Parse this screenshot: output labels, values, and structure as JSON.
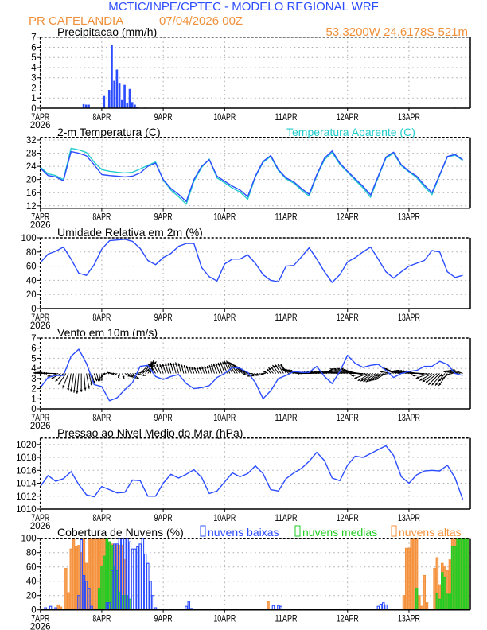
{
  "header": {
    "title": "MCTIC/INPE/CPTEC - MODELO REGIONAL WRF",
    "station": "PR CAFELANDIA",
    "run": "07/04/2026 00Z",
    "location": "53.3200W 24.6178S 521m"
  },
  "colors": {
    "title": "#2b4cff",
    "info": "#f0903a",
    "line": "#2b4cff",
    "apparent": "#22cccc",
    "low": "#2b4cff",
    "mid": "#22cc22",
    "high": "#f5903a"
  },
  "x_axis": {
    "labels": [
      "7APR",
      "8APR",
      "9APR",
      "10APR",
      "11APR",
      "12APR",
      "13APR"
    ],
    "year": "2026",
    "range": [
      "07/00Z",
      "13/23Z"
    ]
  },
  "times": [
    "07/00Z",
    "07/03Z",
    "07/06Z",
    "07/09Z",
    "07/12Z",
    "07/15Z",
    "07/18Z",
    "07/21Z",
    "08/00Z",
    "08/03Z",
    "08/06Z",
    "08/09Z",
    "08/12Z",
    "08/15Z",
    "08/18Z",
    "08/21Z",
    "09/00Z",
    "09/03Z",
    "09/06Z",
    "09/09Z",
    "09/12Z",
    "09/15Z",
    "09/18Z",
    "09/21Z",
    "10/00Z",
    "10/03Z",
    "10/06Z",
    "10/09Z",
    "10/12Z",
    "10/15Z",
    "10/18Z",
    "10/21Z",
    "11/00Z",
    "11/03Z",
    "11/06Z",
    "11/09Z",
    "11/12Z",
    "11/15Z",
    "11/18Z",
    "11/21Z",
    "12/00Z",
    "12/03Z",
    "12/06Z",
    "12/09Z",
    "12/12Z",
    "12/15Z",
    "12/18Z",
    "12/21Z",
    "13/00Z",
    "13/03Z",
    "13/06Z",
    "13/09Z",
    "13/12Z",
    "13/15Z",
    "13/18Z",
    "13/21Z"
  ],
  "chart_data": [
    {
      "type": "bar",
      "title": "Precipitacao (mm/h)",
      "ylim": [
        0,
        7
      ],
      "yticks": [
        0,
        1,
        2,
        3,
        4,
        5,
        6,
        7
      ],
      "grid": true,
      "bars": [
        [
          "07/17Z",
          0.4
        ],
        [
          "07/18Z",
          0.35
        ],
        [
          "07/19Z",
          0.35
        ],
        [
          "08/01Z",
          1.2
        ],
        [
          "08/03Z",
          1.8
        ],
        [
          "08/04Z",
          6.2
        ],
        [
          "08/05Z",
          2.7
        ],
        [
          "08/06Z",
          3.8
        ],
        [
          "08/07Z",
          2.5
        ],
        [
          "08/08Z",
          0.8
        ],
        [
          "08/09Z",
          2.3
        ],
        [
          "08/10Z",
          0.5
        ],
        [
          "08/11Z",
          1.9
        ],
        [
          "08/12Z",
          0.6
        ],
        [
          "08/13Z",
          0.35
        ],
        [
          "08/14Z",
          0.1
        ],
        [
          "08/17Z",
          0.05
        ],
        [
          "13/18Z",
          0.05
        ]
      ]
    },
    {
      "type": "line",
      "title": "2-m Temperatura (C)",
      "legend": "Temperatura Aparente (C)",
      "ylim": [
        11.3,
        32.8
      ],
      "yticks": [
        12,
        16,
        20,
        24,
        28,
        32
      ],
      "grid": true,
      "series": [
        {
          "key": "temperature",
          "values": [
            23.5,
            21.2,
            20.8,
            19.6,
            28.5,
            28.0,
            27.2,
            24.5,
            21.5,
            21.2,
            21.0,
            20.8,
            21.0,
            22.0,
            24.0,
            25.0,
            20.0,
            17.3,
            15.5,
            13.3,
            20.0,
            24.0,
            26.0,
            21.0,
            19.5,
            18.0,
            16.8,
            14.8,
            21.0,
            25.5,
            27.3,
            23.0,
            20.5,
            19.3,
            17.3,
            15.5,
            21.5,
            26.5,
            28.7,
            25.0,
            22.5,
            20.2,
            18.0,
            15.3,
            21.0,
            26.8,
            28.3,
            24.5,
            22.5,
            21.0,
            18.3,
            16.0,
            21.5,
            27.0,
            27.6,
            26.0
          ]
        },
        {
          "key": "apparent",
          "name": "Temperatura Aparente (C)",
          "values": [
            23.8,
            21.7,
            21.2,
            20.0,
            29.5,
            29.0,
            28.2,
            25.3,
            23.0,
            22.5,
            22.2,
            22.0,
            22.2,
            23.2,
            24.3,
            25.3,
            19.8,
            16.8,
            14.8,
            12.5,
            19.5,
            23.7,
            26.2,
            20.5,
            19.0,
            17.4,
            16.2,
            14.0,
            20.8,
            25.2,
            27.0,
            22.7,
            20.2,
            18.9,
            16.8,
            15.0,
            21.2,
            26.0,
            28.2,
            24.6,
            22.3,
            19.8,
            17.5,
            14.6,
            20.7,
            26.5,
            28.0,
            24.2,
            22.3,
            20.6,
            17.8,
            15.4,
            21.3,
            26.8,
            27.4,
            25.8
          ]
        }
      ]
    },
    {
      "type": "line",
      "title": "Umidade Relativa em 2m (%)",
      "ylim": [
        0,
        100
      ],
      "yticks": [
        0,
        20,
        40,
        60,
        80,
        100
      ],
      "grid": true,
      "series": [
        {
          "key": "rh",
          "values": [
            65,
            77,
            81,
            87,
            70,
            50,
            47,
            62,
            84,
            96,
            97,
            98,
            95,
            85,
            68,
            62,
            72,
            78,
            88,
            92,
            92,
            58,
            45,
            39,
            63,
            70,
            70,
            76,
            64,
            48,
            40,
            38,
            60,
            61,
            73,
            86,
            70,
            52,
            37,
            48,
            66,
            72,
            80,
            87,
            70,
            52,
            43,
            52,
            60,
            64,
            68,
            82,
            80,
            52,
            44,
            47
          ]
        }
      ]
    },
    {
      "type": "line",
      "title": "Vento em 10m (m/s)",
      "ylim": [
        0,
        7
      ],
      "yticks": [
        0,
        1,
        2,
        3,
        4,
        5,
        6,
        7
      ],
      "grid": true,
      "series": [
        {
          "key": "speed",
          "values": [
            2.1,
            3.1,
            3.3,
            3.3,
            5.2,
            5.9,
            4.5,
            2.4,
            2.2,
            0.8,
            1.1,
            1.9,
            2.6,
            4.2,
            4.3,
            3.2,
            2.9,
            3.2,
            3.4,
            2.5,
            2.0,
            2.1,
            2.3,
            3.1,
            3.5,
            4.1,
            4.0,
            3.6,
            2.6,
            1.0,
            1.8,
            3.0,
            3.3,
            3.7,
            3.6,
            3.6,
            4.2,
            3.2,
            2.5,
            3.7,
            5.3,
            4.5,
            4.1,
            4.3,
            4.4,
            3.8,
            3.1,
            3.5,
            3.7,
            3.8,
            4.2,
            4.2,
            4.7,
            4.4,
            3.5,
            3.3
          ]
        }
      ],
      "vectors": {
        "baseline": 3.5,
        "direction_to_deg": [
          275,
          275,
          270,
          225,
          190,
          185,
          170,
          160,
          180,
          300,
          240,
          120,
          130,
          45,
          35,
          330,
          340,
          345,
          345,
          345,
          340,
          340,
          345,
          340,
          340,
          335,
          320,
          300,
          250,
          240,
          320,
          325,
          330,
          290,
          285,
          270,
          275,
          280,
          285,
          275,
          285,
          290,
          270,
          240,
          235,
          240,
          300,
          280,
          285,
          280,
          270,
          240,
          225,
          215,
          280,
          290
        ]
      }
    },
    {
      "type": "line",
      "title": "Pressao ao Nivel Medio do Mar (hPa)",
      "ylim": [
        1010,
        1021
      ],
      "yticks": [
        1010,
        1012,
        1014,
        1016,
        1018,
        1020
      ],
      "grid": true,
      "series": [
        {
          "key": "mslp",
          "values": [
            1013.5,
            1015.2,
            1014.3,
            1014.7,
            1015.8,
            1013.8,
            1012.2,
            1011.9,
            1013.5,
            1013.0,
            1012.5,
            1012.6,
            1014.5,
            1014.4,
            1012.0,
            1012.0,
            1014.0,
            1015.4,
            1014.8,
            1015.4,
            1016.1,
            1014.9,
            1012.4,
            1012.8,
            1014.2,
            1015.6,
            1015.0,
            1015.5,
            1016.7,
            1015.5,
            1013.0,
            1012.8,
            1014.7,
            1015.6,
            1016.3,
            1017.4,
            1018.8,
            1017.5,
            1014.8,
            1014.4,
            1016.8,
            1018.2,
            1018.0,
            1018.6,
            1019.2,
            1019.8,
            1018.3,
            1015.0,
            1014.0,
            1015.3,
            1015.9,
            1016.0,
            1015.9,
            1016.8,
            1014.8,
            1011.5
          ]
        }
      ]
    },
    {
      "type": "bar",
      "title": "Cobertura de Nuvens (%)",
      "ylim": [
        0,
        100
      ],
      "yticks": [
        0,
        20,
        40,
        60,
        80,
        100
      ],
      "grid": true,
      "legend": {
        "low": "nuvens baixas",
        "mid": "nuvens medias",
        "high": "nuvens altas"
      },
      "series": [
        {
          "key": "high",
          "name": "nuvens altas",
          "bars": [
            [
              "07/07Z",
              7
            ],
            [
              "07/08Z",
              4
            ],
            [
              "07/10Z",
              58
            ],
            [
              "07/11Z",
              24
            ],
            [
              "07/12Z",
              85
            ],
            [
              "07/13Z",
              100
            ],
            [
              "07/14Z",
              88
            ],
            [
              "07/15Z",
              90
            ],
            [
              "07/16Z",
              80
            ],
            [
              "07/17Z",
              100
            ],
            [
              "07/18Z",
              65
            ],
            [
              "07/19Z",
              100
            ],
            [
              "07/20Z",
              100
            ],
            [
              "07/21Z",
              100
            ],
            [
              "07/22Z",
              100
            ],
            [
              "07/23Z",
              100
            ],
            [
              "08/00Z",
              100
            ],
            [
              "08/01Z",
              100
            ],
            [
              "08/02Z",
              100
            ],
            [
              "08/03Z",
              95
            ],
            [
              "08/04Z",
              92
            ],
            [
              "08/05Z",
              90
            ],
            [
              "08/06Z",
              90
            ],
            [
              "08/07Z",
              90
            ],
            [
              "08/08Z",
              90
            ],
            [
              "08/09Z",
              70
            ],
            [
              "08/10Z",
              20
            ],
            [
              "10/17Z",
              12
            ],
            [
              "12/22Z",
              20
            ],
            [
              "12/23Z",
              86
            ],
            [
              "13/00Z",
              86
            ],
            [
              "13/01Z",
              100
            ],
            [
              "13/02Z",
              100
            ],
            [
              "13/03Z",
              100
            ],
            [
              "13/04Z",
              20
            ],
            [
              "13/05Z",
              5
            ],
            [
              "13/06Z",
              48
            ],
            [
              "13/07Z",
              10
            ],
            [
              "13/10Z",
              58
            ],
            [
              "13/11Z",
              73
            ],
            [
              "13/12Z",
              35
            ],
            [
              "13/13Z",
              65
            ],
            [
              "13/14Z",
              60
            ],
            [
              "13/15Z",
              55
            ],
            [
              "13/16Z",
              70
            ],
            [
              "13/17Z",
              100
            ],
            [
              "13/18Z",
              100
            ],
            [
              "13/19Z",
              100
            ],
            [
              "13/20Z",
              100
            ],
            [
              "13/21Z",
              100
            ],
            [
              "13/22Z",
              100
            ],
            [
              "13/23Z",
              100
            ]
          ]
        },
        {
          "key": "mid",
          "name": "nuvens medias",
          "bars": [
            [
              "07/23Z",
              30
            ],
            [
              "08/00Z",
              60
            ],
            [
              "08/01Z",
              75
            ],
            [
              "08/02Z",
              100
            ],
            [
              "08/03Z",
              95
            ],
            [
              "08/04Z",
              90
            ],
            [
              "08/05Z",
              60
            ],
            [
              "08/06Z",
              55
            ],
            [
              "08/07Z",
              25
            ],
            [
              "08/08Z",
              20
            ],
            [
              "08/09Z",
              20
            ],
            [
              "08/10Z",
              20
            ],
            [
              "08/11Z",
              15
            ],
            [
              "13/03Z",
              30
            ],
            [
              "13/11Z",
              23
            ],
            [
              "13/12Z",
              15
            ],
            [
              "13/13Z",
              52
            ],
            [
              "13/14Z",
              45
            ],
            [
              "13/15Z",
              22
            ],
            [
              "13/16Z",
              22
            ],
            [
              "13/17Z",
              88
            ],
            [
              "13/18Z",
              88
            ],
            [
              "13/19Z",
              100
            ],
            [
              "13/20Z",
              100
            ],
            [
              "13/21Z",
              100
            ],
            [
              "13/22Z",
              100
            ],
            [
              "13/23Z",
              100
            ]
          ]
        },
        {
          "key": "low",
          "name": "nuvens baixas",
          "bars": [
            [
              "07/02Z",
              3
            ],
            [
              "07/04Z",
              5
            ],
            [
              "07/06Z",
              3
            ],
            [
              "07/15Z",
              20
            ],
            [
              "07/16Z",
              98
            ],
            [
              "07/17Z",
              48
            ],
            [
              "07/18Z",
              40
            ],
            [
              "07/19Z",
              30
            ],
            [
              "07/20Z",
              5
            ],
            [
              "08/02Z",
              10
            ],
            [
              "08/03Z",
              10
            ],
            [
              "08/04Z",
              55
            ],
            [
              "08/05Z",
              92
            ],
            [
              "08/06Z",
              92
            ],
            [
              "08/07Z",
              100
            ],
            [
              "08/08Z",
              100
            ],
            [
              "08/09Z",
              100
            ],
            [
              "08/10Z",
              100
            ],
            [
              "08/11Z",
              95
            ],
            [
              "08/12Z",
              85
            ],
            [
              "08/13Z",
              85
            ],
            [
              "08/14Z",
              88
            ],
            [
              "08/15Z",
              92
            ],
            [
              "08/16Z",
              100
            ],
            [
              "08/17Z",
              78
            ],
            [
              "08/18Z",
              65
            ],
            [
              "08/19Z",
              40
            ],
            [
              "08/20Z",
              20
            ],
            [
              "08/21Z",
              3
            ],
            [
              "09/09Z",
              5
            ],
            [
              "09/10Z",
              12
            ],
            [
              "09/11Z",
              2
            ],
            [
              "10/19Z",
              6
            ],
            [
              "10/21Z",
              6
            ],
            [
              "10/22Z",
              5
            ],
            [
              "12/12Z",
              5
            ],
            [
              "12/13Z",
              8
            ],
            [
              "12/14Z",
              10
            ],
            [
              "12/15Z",
              7
            ]
          ]
        }
      ]
    }
  ]
}
